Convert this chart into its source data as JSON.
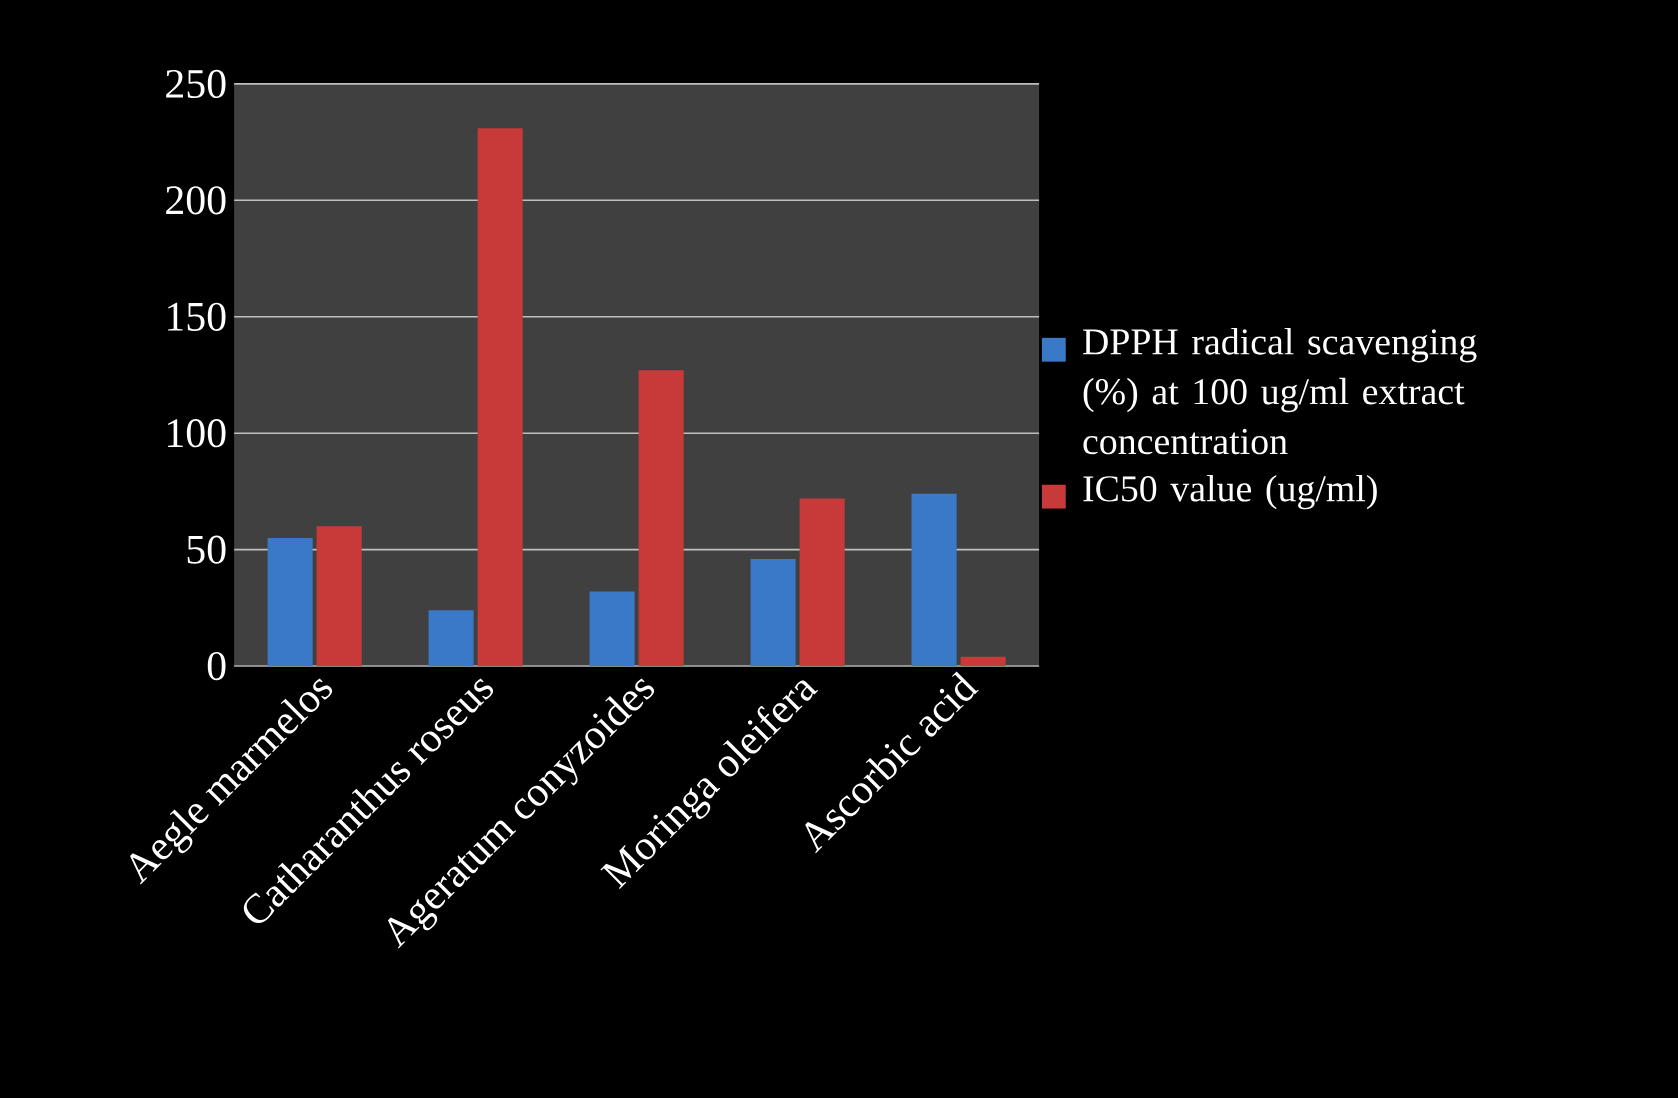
{
  "chart_data": {
    "type": "bar",
    "categories": [
      "Aegle marmelos",
      "Catharanthus roseus",
      "Ageratum conyzoides",
      "Moringa oleifera",
      "Ascorbic acid"
    ],
    "series": [
      {
        "name": "DPPH radical scavenging (%) at 100 ug/ml extract concentration",
        "color": "#3a78c8",
        "values": [
          55,
          24,
          32,
          46,
          74
        ]
      },
      {
        "name": "IC50 value (ug/ml)",
        "color": "#c83a3a",
        "values": [
          60,
          231,
          127,
          72,
          4
        ]
      }
    ],
    "ylim": [
      0,
      250
    ],
    "yticks": [
      0,
      50,
      100,
      150,
      200,
      250
    ],
    "grid": "y",
    "legend": "right"
  }
}
